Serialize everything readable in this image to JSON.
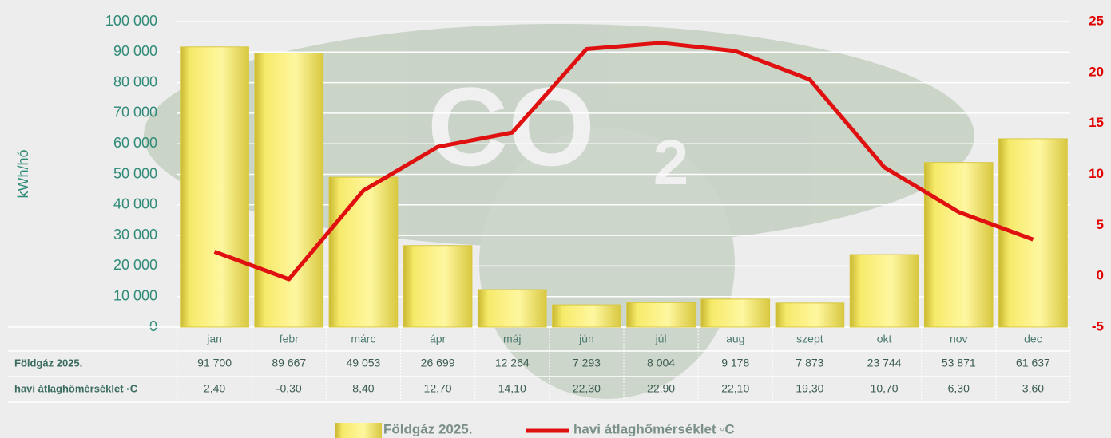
{
  "chart_data": {
    "type": "bar",
    "y_label": "kWh/hó",
    "categories": [
      "jan",
      "febr",
      "márc",
      "ápr",
      "máj",
      "jún",
      "júl",
      "aug",
      "szept",
      "okt",
      "nov",
      "dec"
    ],
    "series": [
      {
        "name": "Földgáz 2025.",
        "type": "bar",
        "color": "#f2e25a",
        "values": [
          91700,
          89667,
          49053,
          26699,
          12264,
          7293,
          8004,
          9178,
          7873,
          23744,
          53871,
          61637
        ],
        "value_labels": [
          "91 700",
          "89 667",
          "49 053",
          "26 699",
          "12 264",
          "7 293",
          "8 004",
          "9 178",
          "7 873",
          "23 744",
          "53 871",
          "61 637"
        ]
      },
      {
        "name": "havi átlaghőmérséklet ◦C",
        "type": "line",
        "axis": "y2",
        "color": "#e01010",
        "values": [
          2.4,
          -0.3,
          8.4,
          12.7,
          14.1,
          22.3,
          22.9,
          22.1,
          19.3,
          10.7,
          6.3,
          3.6
        ],
        "value_labels": [
          "2,40",
          "-0,30",
          "8,40",
          "12,70",
          "14,10",
          "22,30",
          "22,90",
          "22,10",
          "19,30",
          "10,70",
          "6,30",
          "3,60"
        ]
      }
    ],
    "ylim": [
      0,
      100000
    ],
    "yticks": [
      0,
      {
        "value": 10000,
        "label": "10 000"
      },
      {
        "value": 20000,
        "label": "20 000"
      },
      {
        "value": 30000,
        "label": "30 000"
      },
      {
        "value": 40000,
        "label": "40 000"
      },
      {
        "value": 50000,
        "label": "50 000"
      },
      {
        "value": 60000,
        "label": "60 000"
      },
      {
        "value": 70000,
        "label": "70 000"
      },
      {
        "value": 80000,
        "label": "80 000"
      },
      {
        "value": 90000,
        "label": "90 000"
      },
      {
        "value": 100000,
        "label": "100 000"
      }
    ],
    "y2lim": [
      -5,
      25
    ],
    "y2ticks": [
      -5,
      0,
      5,
      10,
      15,
      20,
      25
    ],
    "grid": true
  }
}
